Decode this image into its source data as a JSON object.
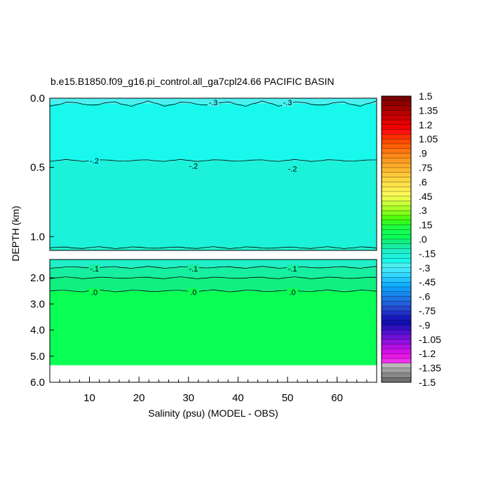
{
  "chart_data": {
    "type": "heatmap",
    "title": "b.e15.B1850.f09_g16.pi_control.all_ga7cpl24.66 PACIFIC BASIN",
    "xlabel": "Salinity (psu) (MODEL - OBS)",
    "ylabel": "DEPTH (km)",
    "xlim": [
      2,
      68
    ],
    "x_ticks": [
      10,
      20,
      30,
      40,
      50,
      60
    ],
    "x_tick_labels": [
      "10",
      "20",
      "30",
      "40",
      "50",
      "60"
    ],
    "panels": [
      {
        "name": "upper",
        "ylim": [
          0.0,
          1.1
        ],
        "y_ticks": [
          0.0,
          0.5,
          1.0
        ],
        "y_tick_labels": [
          "0.0",
          "0.5",
          "1.0"
        ],
        "fill_levels": [
          {
            "from": 0.0,
            "to": 0.04,
            "value": -0.3
          },
          {
            "from": 0.04,
            "to": 0.45,
            "value": -0.25
          },
          {
            "from": 0.45,
            "to": 1.08,
            "value": -0.2
          },
          {
            "from": 1.08,
            "to": 1.1,
            "value": -0.15
          }
        ],
        "contour_labels": [
          {
            "text": "-.3",
            "x": 35,
            "y": 0.03
          },
          {
            "text": "-.3",
            "x": 50,
            "y": 0.03
          },
          {
            "text": "-.2",
            "x": 11,
            "y": 0.45
          },
          {
            "text": "-.2",
            "x": 31,
            "y": 0.49
          },
          {
            "text": "-.2",
            "x": 51,
            "y": 0.51
          }
        ]
      },
      {
        "name": "lower",
        "ylim": [
          1.3,
          6.0
        ],
        "y_ticks": [
          2.0,
          3.0,
          4.0,
          5.0,
          6.0
        ],
        "y_tick_labels": [
          "2.0",
          "3.0",
          "4.0",
          "5.0",
          "6.0"
        ],
        "max_depth": 5.35,
        "fill_levels": [
          {
            "from": 1.3,
            "to": 1.6,
            "value": -0.15
          },
          {
            "from": 1.6,
            "to": 2.0,
            "value": -0.1
          },
          {
            "from": 2.0,
            "to": 2.5,
            "value": -0.05
          },
          {
            "from": 2.5,
            "to": 5.35,
            "value": 0.0
          }
        ],
        "contour_labels": [
          {
            "text": "-.1",
            "x": 11,
            "y": 1.65
          },
          {
            "text": "-.1",
            "x": 31,
            "y": 1.65
          },
          {
            "text": "-.1",
            "x": 51,
            "y": 1.65
          },
          {
            "text": ".0",
            "x": 11,
            "y": 2.55
          },
          {
            "text": ".0",
            "x": 31,
            "y": 2.55
          },
          {
            "text": ".0",
            "x": 51,
            "y": 2.55
          }
        ]
      }
    ],
    "colorbar": {
      "range": [
        -1.5,
        1.5
      ],
      "step": 0.05,
      "labels": [
        "1.5",
        "1.35",
        "1.2",
        "1.05",
        ".9",
        ".75",
        ".6",
        ".45",
        ".3",
        ".15",
        ".0",
        "-.15",
        "-.3",
        "-.45",
        "-.6",
        "-.75",
        "-.9",
        "-1.05",
        "-1.2",
        "-1.35",
        "-1.5"
      ]
    },
    "colors": {
      "-0.3": "#4CF0F0",
      "-0.25": "#18F8EC",
      "-0.2": "#1CF2DA",
      "-0.15": "#20EFC8",
      "-0.1": "#16EEA0",
      "-0.05": "#10F080",
      "0.0": "#0AFF55"
    }
  }
}
